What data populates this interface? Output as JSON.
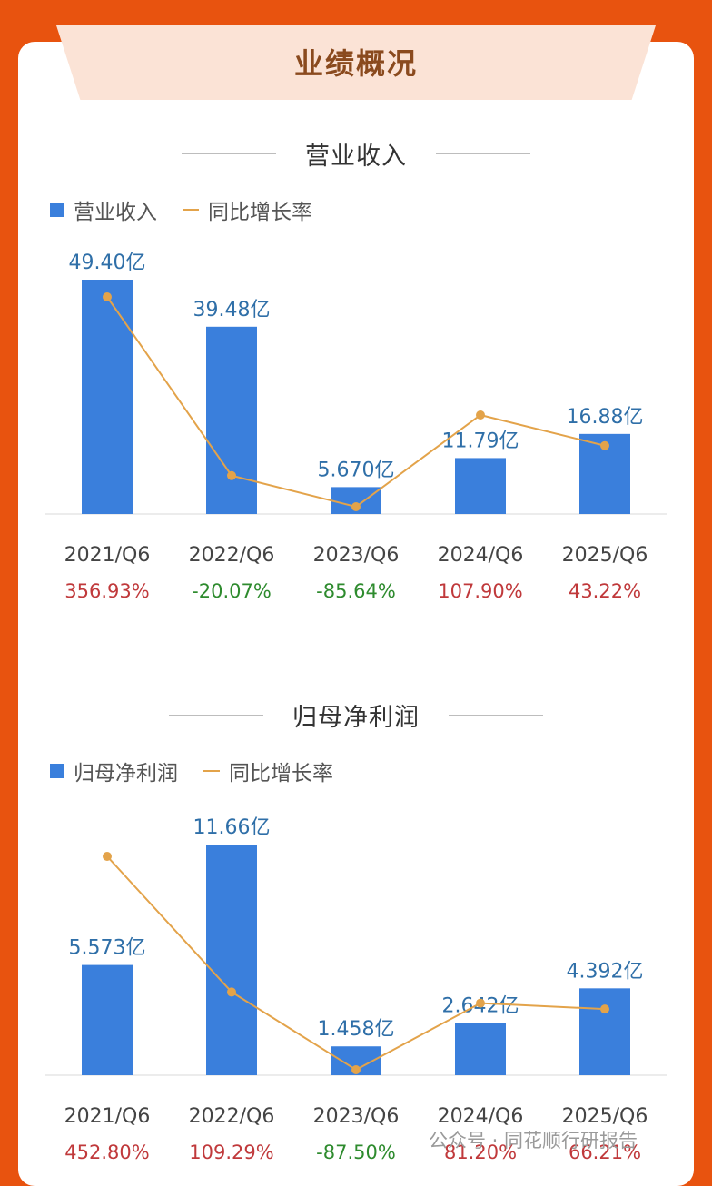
{
  "header": {
    "title": "业绩概况"
  },
  "charts_meta": {
    "bar_color": "#3a7fdc",
    "line_color": "#e3a34a",
    "positive_color": "#c0393b",
    "negative_color": "#2e8b2e"
  },
  "chart_data": [
    {
      "type": "bar",
      "title": "营业收入",
      "legend": [
        "营业收入",
        "同比增长率"
      ],
      "categories": [
        "2021/Q6",
        "2022/Q6",
        "2023/Q6",
        "2024/Q6",
        "2025/Q6"
      ],
      "series": [
        {
          "name": "营业收入",
          "values": [
            49.4,
            39.48,
            5.67,
            11.79,
            16.88
          ],
          "labels": [
            "49.40亿",
            "39.48亿",
            "5.670亿",
            "11.79亿",
            "16.88亿"
          ]
        },
        {
          "name": "同比增长率",
          "values": [
            356.93,
            -20.07,
            -85.64,
            107.9,
            43.22
          ],
          "labels": [
            "356.93%",
            "-20.07%",
            "-85.64%",
            "107.90%",
            "43.22%"
          ]
        }
      ]
    },
    {
      "type": "bar",
      "title": "归母净利润",
      "legend": [
        "归母净利润",
        "同比增长率"
      ],
      "categories": [
        "2021/Q6",
        "2022/Q6",
        "2023/Q6",
        "2024/Q6",
        "2025/Q6"
      ],
      "series": [
        {
          "name": "归母净利润",
          "values": [
            5.573,
            11.66,
            1.458,
            2.642,
            4.392
          ],
          "labels": [
            "5.573亿",
            "11.66亿",
            "1.458亿",
            "2.642亿",
            "4.392亿"
          ]
        },
        {
          "name": "同比增长率",
          "values": [
            452.8,
            109.29,
            -87.5,
            81.2,
            66.21
          ],
          "labels": [
            "452.80%",
            "109.29%",
            "-87.50%",
            "81.20%",
            "66.21%"
          ]
        }
      ]
    }
  ],
  "watermark": "公众号 · 同花顺行研报告"
}
